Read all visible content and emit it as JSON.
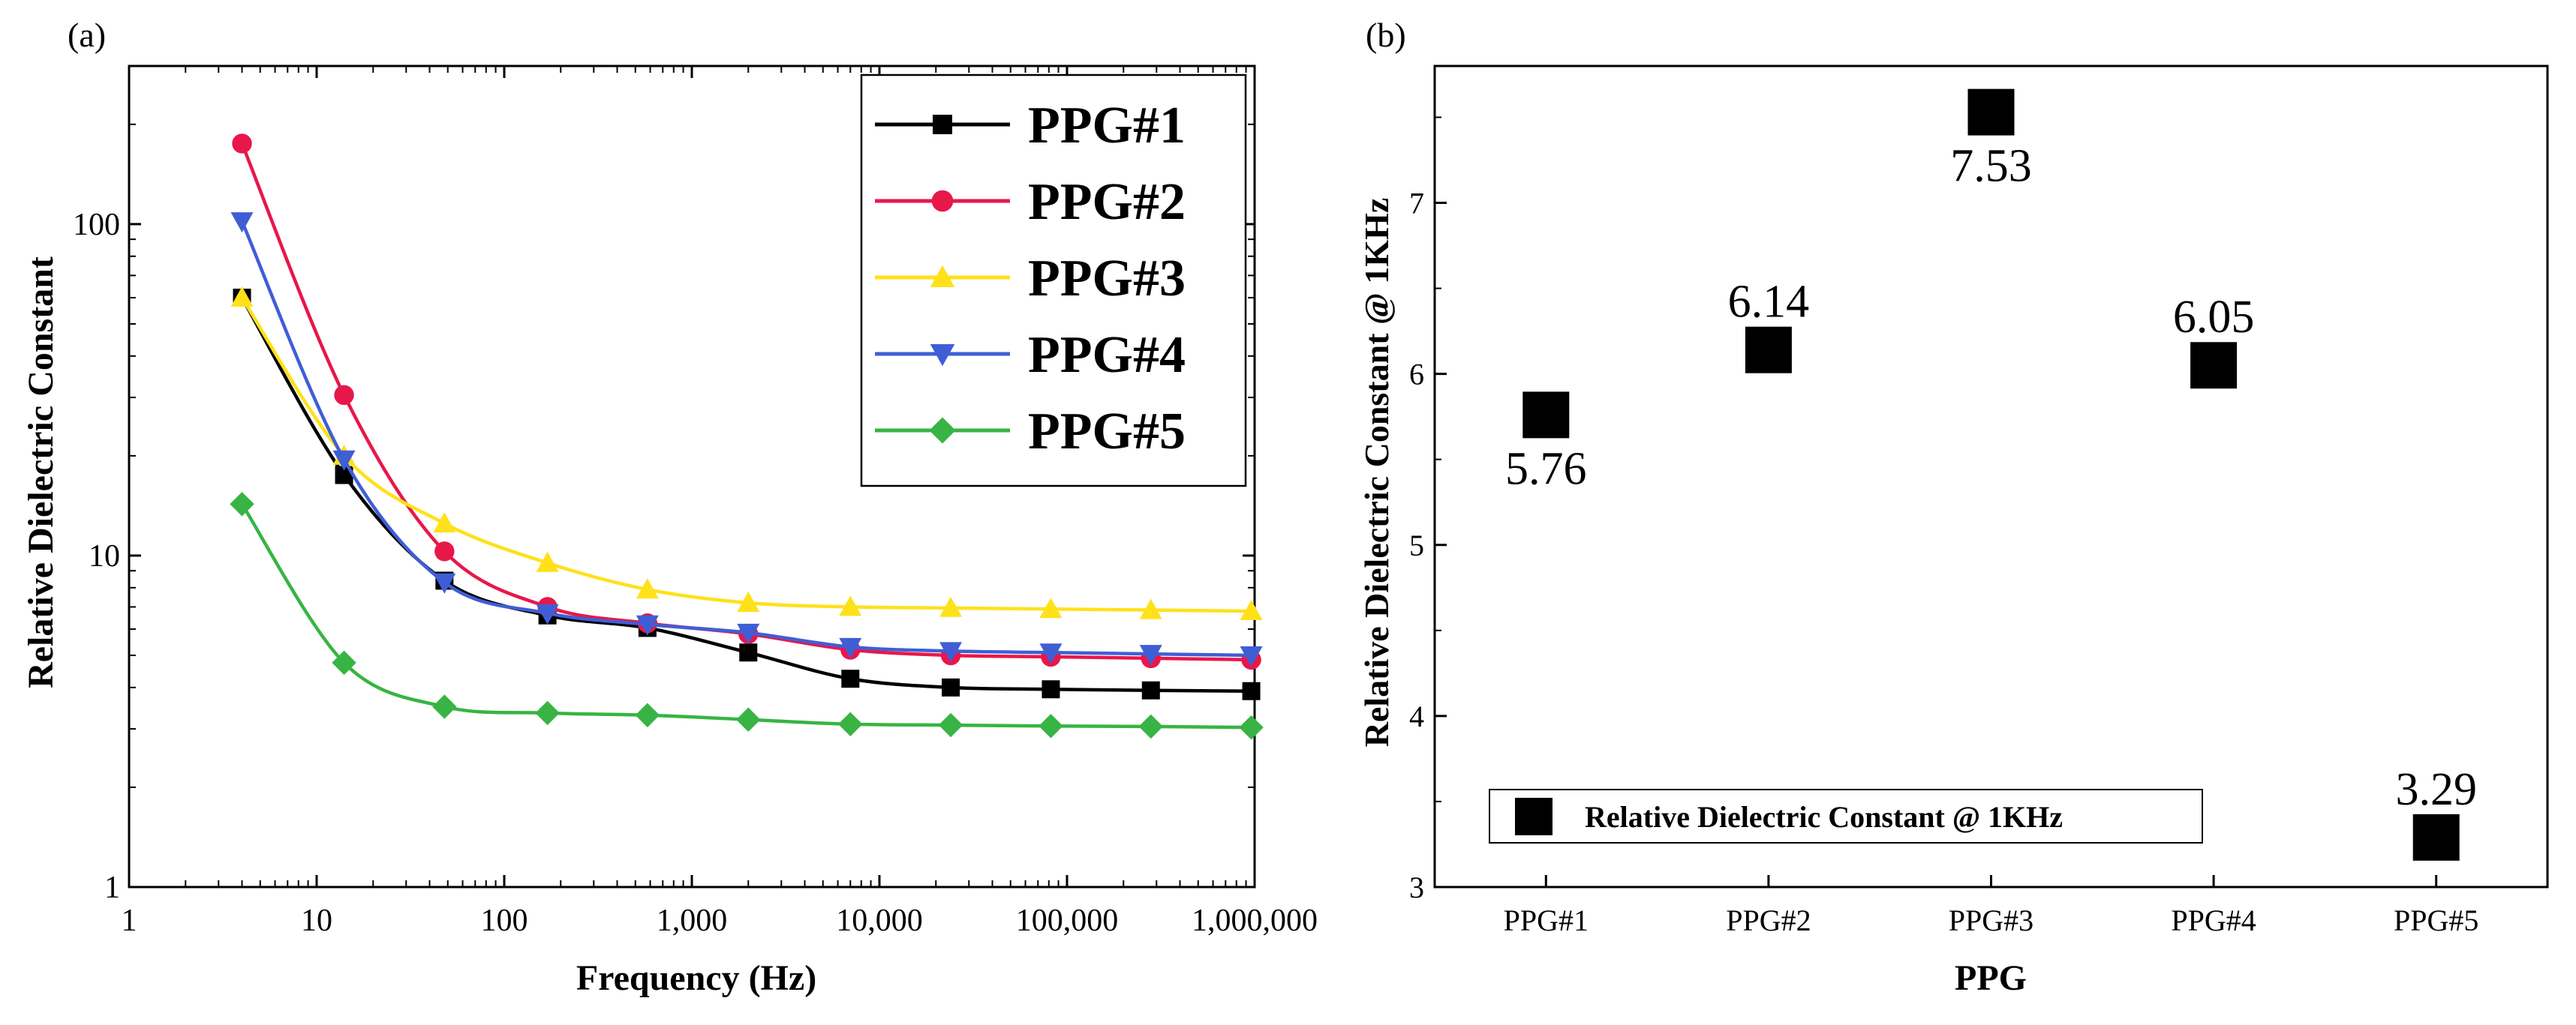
{
  "chart_data": [
    {
      "panel_label": "(a)",
      "type": "line",
      "xscale": "log",
      "yscale": "log",
      "xlabel": "Frequency (Hz)",
      "ylabel": "Relative Dielectric Constant",
      "xlim": [
        1,
        1000000
      ],
      "ylim": [
        1,
        300
      ],
      "xticks": [
        {
          "value": 1,
          "label": "1"
        },
        {
          "value": 10,
          "label": "10"
        },
        {
          "value": 100,
          "label": "100"
        },
        {
          "value": 1000,
          "label": "1,000"
        },
        {
          "value": 10000,
          "label": "10,000"
        },
        {
          "value": 100000,
          "label": "100,000"
        },
        {
          "value": 1000000,
          "label": "1,000,000"
        }
      ],
      "yticks": [
        {
          "value": 1,
          "label": "1"
        },
        {
          "value": 10,
          "label": "10"
        },
        {
          "value": 100,
          "label": "100"
        }
      ],
      "legend_position": "top-right",
      "x": [
        4,
        14,
        48,
        170,
        580,
        2000,
        7000,
        24000,
        82000,
        280000,
        960000
      ],
      "series": [
        {
          "name": "PPG#1",
          "color": "#000000",
          "marker": "square",
          "values": [
            60,
            17.5,
            8.4,
            6.6,
            6.05,
            5.1,
            4.25,
            4.0,
            3.95,
            3.92,
            3.9
          ]
        },
        {
          "name": "PPG#2",
          "color": "#e8174a",
          "marker": "circle",
          "values": [
            175,
            30.5,
            10.3,
            7.0,
            6.25,
            5.8,
            5.2,
            5.0,
            4.95,
            4.9,
            4.85
          ]
        },
        {
          "name": "PPG#3",
          "color": "#ffe11a",
          "marker": "triangle-up",
          "values": [
            60,
            20,
            12.5,
            9.5,
            7.9,
            7.2,
            7.0,
            6.95,
            6.9,
            6.85,
            6.8
          ]
        },
        {
          "name": "PPG#4",
          "color": "#3f5ed6",
          "marker": "triangle-down",
          "values": [
            102,
            19.5,
            8.3,
            6.7,
            6.2,
            5.85,
            5.3,
            5.15,
            5.1,
            5.05,
            5.0
          ]
        },
        {
          "name": "PPG#5",
          "color": "#37b443",
          "marker": "diamond",
          "values": [
            14.3,
            4.75,
            3.5,
            3.35,
            3.3,
            3.2,
            3.1,
            3.08,
            3.06,
            3.05,
            3.03
          ]
        }
      ]
    },
    {
      "panel_label": "(b)",
      "type": "scatter",
      "xlabel": "PPG",
      "ylabel": "Relative Dielectric Constant @ 1KHz",
      "ylim": [
        3,
        7.8
      ],
      "yticks": [
        3,
        4,
        5,
        6,
        7
      ],
      "categories": [
        "PPG#1",
        "PPG#2",
        "PPG#3",
        "PPG#4",
        "PPG#5"
      ],
      "legend_position": "bottom-left",
      "series": [
        {
          "name": "Relative Dielectric Constant @ 1KHz",
          "color": "#000000",
          "marker": "square",
          "values": [
            5.76,
            6.14,
            7.53,
            6.05,
            3.29
          ],
          "labels": [
            "5.76",
            "6.14",
            "7.53",
            "6.05",
            "3.29"
          ],
          "label_positions": [
            "below",
            "above",
            "below",
            "above",
            "above"
          ]
        }
      ]
    }
  ]
}
